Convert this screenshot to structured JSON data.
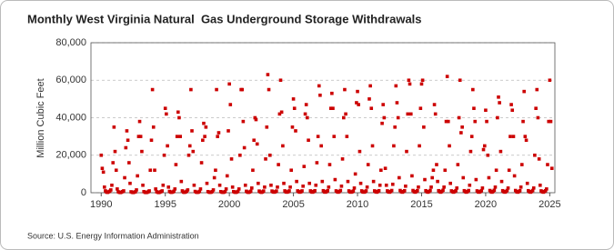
{
  "chart_data": {
    "type": "scatter",
    "title": "Monthly West Virginia Natural  Gas Underground Storage Withdrawals",
    "y_label": "Million Cubic Feet",
    "source": "Source: U.S. Energy Information Administration",
    "color": "#cc0000",
    "grid": true,
    "xlim": [
      1989.2,
      2025.4
    ],
    "xticks": [
      1990,
      1995,
      2000,
      2005,
      2010,
      2015,
      2020,
      2025
    ],
    "ylim": [
      0,
      80000
    ],
    "yticks": [
      0,
      {
        "value": 20000,
        "label": "20,000"
      },
      {
        "value": 40000,
        "label": "40,000"
      },
      {
        "value": 60000,
        "label": "60,000"
      },
      {
        "value": 80000,
        "label": "80,000"
      }
    ],
    "x": [
      1990,
      1990.08,
      1990.17,
      1990.25,
      1990.33,
      1990.42,
      1990.5,
      1990.58,
      1990.67,
      1990.75,
      1990.83,
      1990.92,
      1991,
      1991.08,
      1991.17,
      1991.25,
      1991.33,
      1991.42,
      1991.5,
      1991.58,
      1991.67,
      1991.75,
      1991.83,
      1991.92,
      1992,
      1992.08,
      1992.17,
      1992.25,
      1992.33,
      1992.42,
      1992.5,
      1992.58,
      1992.67,
      1992.75,
      1992.83,
      1992.92,
      1993,
      1993.08,
      1993.17,
      1993.25,
      1993.33,
      1993.42,
      1993.5,
      1993.58,
      1993.67,
      1993.75,
      1993.83,
      1993.92,
      1994,
      1994.08,
      1994.17,
      1994.25,
      1994.33,
      1994.42,
      1994.5,
      1994.58,
      1994.67,
      1994.75,
      1994.83,
      1994.92,
      1995,
      1995.08,
      1995.17,
      1995.25,
      1995.33,
      1995.42,
      1995.5,
      1995.58,
      1995.67,
      1995.75,
      1995.83,
      1995.92,
      1996,
      1996.08,
      1996.17,
      1996.25,
      1996.33,
      1996.42,
      1996.5,
      1996.58,
      1996.67,
      1996.75,
      1996.83,
      1996.92,
      1997,
      1997.08,
      1997.17,
      1997.25,
      1997.33,
      1997.42,
      1997.5,
      1997.58,
      1997.67,
      1997.75,
      1997.83,
      1997.92,
      1998,
      1998.08,
      1998.17,
      1998.25,
      1998.33,
      1998.42,
      1998.5,
      1998.58,
      1998.67,
      1998.75,
      1998.83,
      1998.92,
      1999,
      1999.08,
      1999.17,
      1999.25,
      1999.33,
      1999.42,
      1999.5,
      1999.58,
      1999.67,
      1999.75,
      1999.83,
      1999.92,
      2000,
      2000.08,
      2000.17,
      2000.25,
      2000.33,
      2000.42,
      2000.5,
      2000.58,
      2000.67,
      2000.75,
      2000.83,
      2000.92,
      2001,
      2001.08,
      2001.17,
      2001.25,
      2001.33,
      2001.42,
      2001.5,
      2001.58,
      2001.67,
      2001.75,
      2001.83,
      2001.92,
      2002,
      2002.08,
      2002.17,
      2002.25,
      2002.33,
      2002.42,
      2002.5,
      2002.58,
      2002.67,
      2002.75,
      2002.83,
      2002.92,
      2003,
      2003.08,
      2003.17,
      2003.25,
      2003.33,
      2003.42,
      2003.5,
      2003.58,
      2003.67,
      2003.75,
      2003.83,
      2003.92,
      2004,
      2004.08,
      2004.17,
      2004.25,
      2004.33,
      2004.42,
      2004.5,
      2004.58,
      2004.67,
      2004.75,
      2004.83,
      2004.92,
      2005,
      2005.08,
      2005.17,
      2005.25,
      2005.33,
      2005.42,
      2005.5,
      2005.58,
      2005.67,
      2005.75,
      2005.83,
      2005.92,
      2006,
      2006.08,
      2006.17,
      2006.25,
      2006.33,
      2006.42,
      2006.5,
      2006.58,
      2006.67,
      2006.75,
      2006.83,
      2006.92,
      2007,
      2007.08,
      2007.17,
      2007.25,
      2007.33,
      2007.42,
      2007.5,
      2007.58,
      2007.67,
      2007.75,
      2007.83,
      2007.92,
      2008,
      2008.08,
      2008.17,
      2008.25,
      2008.33,
      2008.42,
      2008.5,
      2008.58,
      2008.67,
      2008.75,
      2008.83,
      2008.92,
      2009,
      2009.08,
      2009.17,
      2009.25,
      2009.33,
      2009.42,
      2009.5,
      2009.58,
      2009.67,
      2009.75,
      2009.83,
      2009.92,
      2010,
      2010.08,
      2010.17,
      2010.25,
      2010.33,
      2010.42,
      2010.5,
      2010.58,
      2010.67,
      2010.75,
      2010.83,
      2010.92,
      2011,
      2011.08,
      2011.17,
      2011.25,
      2011.33,
      2011.42,
      2011.5,
      2011.58,
      2011.67,
      2011.75,
      2011.83,
      2011.92,
      2012,
      2012.08,
      2012.17,
      2012.25,
      2012.33,
      2012.42,
      2012.5,
      2012.58,
      2012.67,
      2012.75,
      2012.83,
      2012.92,
      2013,
      2013.08,
      2013.17,
      2013.25,
      2013.33,
      2013.42,
      2013.5,
      2013.58,
      2013.67,
      2013.75,
      2013.83,
      2013.92,
      2014,
      2014.08,
      2014.17,
      2014.25,
      2014.33,
      2014.42,
      2014.5,
      2014.58,
      2014.67,
      2014.75,
      2014.83,
      2014.92,
      2015,
      2015.08,
      2015.17,
      2015.25,
      2015.33,
      2015.42,
      2015.5,
      2015.58,
      2015.67,
      2015.75,
      2015.83,
      2015.92,
      2016,
      2016.08,
      2016.17,
      2016.25,
      2016.33,
      2016.42,
      2016.5,
      2016.58,
      2016.67,
      2016.75,
      2016.83,
      2016.92,
      2017,
      2017.08,
      2017.17,
      2017.25,
      2017.33,
      2017.42,
      2017.5,
      2017.58,
      2017.67,
      2017.75,
      2017.83,
      2017.92,
      2018,
      2018.08,
      2018.17,
      2018.25,
      2018.33,
      2018.42,
      2018.5,
      2018.58,
      2018.67,
      2018.75,
      2018.83,
      2018.92,
      2019,
      2019.08,
      2019.17,
      2019.25,
      2019.33,
      2019.42,
      2019.5,
      2019.58,
      2019.67,
      2019.75,
      2019.83,
      2019.92,
      2020,
      2020.08,
      2020.17,
      2020.25,
      2020.33,
      2020.42,
      2020.5,
      2020.58,
      2020.67,
      2020.75,
      2020.83,
      2020.92,
      2021,
      2021.08,
      2021.17,
      2021.25,
      2021.33,
      2021.42,
      2021.5,
      2021.58,
      2021.67,
      2021.75,
      2021.83,
      2021.92,
      2022,
      2022.08,
      2022.17,
      2022.25,
      2022.33,
      2022.42,
      2022.5,
      2022.58,
      2022.67,
      2022.75,
      2022.83,
      2022.92,
      2023,
      2023.08,
      2023.17,
      2023.25,
      2023.33,
      2023.42,
      2023.5,
      2023.58,
      2023.67,
      2023.75,
      2023.83,
      2023.92,
      2024,
      2024.08,
      2024.17,
      2024.25,
      2024.33,
      2024.42,
      2024.5,
      2024.58,
      2024.67,
      2024.75,
      2024.83,
      2024.92,
      2025,
      2025.08,
      2025.17
    ],
    "values": [
      20000,
      13000,
      11000,
      3000,
      1000,
      300,
      200,
      500,
      800,
      1500,
      4000,
      16000,
      35000,
      22000,
      12000,
      2000,
      500,
      200,
      100,
      300,
      600,
      1000,
      8000,
      24000,
      33000,
      28000,
      16000,
      5000,
      500,
      200,
      100,
      300,
      500,
      1500,
      9000,
      30000,
      38000,
      30000,
      22000,
      4000,
      600,
      200,
      100,
      200,
      500,
      1000,
      12000,
      28000,
      55000,
      35000,
      12000,
      2000,
      500,
      200,
      100,
      300,
      600,
      1000,
      4000,
      20000,
      45000,
      42000,
      25000,
      3000,
      700,
      300,
      200,
      400,
      800,
      2000,
      15000,
      30000,
      43000,
      40000,
      30000,
      6000,
      1000,
      300,
      200,
      400,
      800,
      1500,
      20000,
      25000,
      55000,
      33000,
      22000,
      4000,
      700,
      300,
      200,
      300,
      700,
      2000,
      16000,
      28000,
      37000,
      30000,
      35000,
      5000,
      600,
      300,
      200,
      300,
      600,
      1500,
      8000,
      12000,
      55000,
      30000,
      32000,
      4000,
      600,
      300,
      200,
      300,
      600,
      2000,
      9000,
      33000,
      58000,
      47000,
      18000,
      3000,
      600,
      300,
      200,
      400,
      700,
      2000,
      20000,
      55000,
      55000,
      38000,
      24000,
      4000,
      800,
      300,
      200,
      400,
      800,
      2500,
      12000,
      28000,
      40000,
      39000,
      26000,
      5000,
      900,
      400,
      200,
      400,
      900,
      3000,
      18000,
      35000,
      63000,
      55000,
      20000,
      4000,
      900,
      400,
      300,
      500,
      900,
      3000,
      15000,
      42000,
      60000,
      43000,
      25000,
      5000,
      1000,
      400,
      300,
      500,
      1000,
      3000,
      12000,
      35000,
      50000,
      45000,
      33000,
      6000,
      1000,
      500,
      300,
      500,
      1000,
      3500,
      14000,
      42000,
      47000,
      40000,
      28000,
      5000,
      1000,
      400,
      300,
      600,
      1100,
      4000,
      16000,
      30000,
      57000,
      52000,
      25000,
      6000,
      1100,
      400,
      300,
      600,
      1100,
      3000,
      15000,
      45000,
      53000,
      45000,
      30000,
      7000,
      1000,
      500,
      300,
      600,
      1200,
      3500,
      18000,
      40000,
      55000,
      42000,
      30000,
      6000,
      1000,
      400,
      300,
      500,
      900,
      2500,
      10000,
      48000,
      54000,
      47000,
      22000,
      5000,
      1000,
      400,
      300,
      500,
      1000,
      3000,
      15000,
      50000,
      57000,
      45000,
      25000,
      6000,
      1000,
      500,
      300,
      600,
      1100,
      4000,
      12000,
      37000,
      47000,
      40000,
      13000,
      4000,
      1000,
      400,
      300,
      600,
      1200,
      4500,
      25000,
      35000,
      57000,
      48000,
      40000,
      8000,
      1200,
      500,
      300,
      600,
      1100,
      3500,
      22000,
      42000,
      60000,
      58000,
      42000,
      9000,
      1200,
      500,
      300,
      600,
      1100,
      3000,
      25000,
      45000,
      58000,
      60000,
      35000,
      7000,
      1100,
      500,
      300,
      600,
      1200,
      3000,
      8000,
      12000,
      47000,
      42000,
      15000,
      6000,
      1100,
      500,
      300,
      700,
      1300,
      3000,
      12000,
      38000,
      62000,
      38000,
      25000,
      5000,
      1000,
      500,
      300,
      600,
      1100,
      2500,
      15000,
      40000,
      60000,
      32000,
      35000,
      8000,
      1100,
      500,
      300,
      600,
      1200,
      4000,
      22000,
      30000,
      55000,
      45000,
      38000,
      7000,
      1000,
      400,
      300,
      600,
      1100,
      2500,
      23000,
      25000,
      44000,
      38000,
      20000,
      8000,
      1200,
      500,
      300,
      700,
      1300,
      3000,
      12000,
      40000,
      51000,
      48000,
      22000,
      6000,
      1100,
      500,
      300,
      600,
      1200,
      2500,
      12000,
      30000,
      47000,
      44000,
      30000,
      9000,
      1200,
      500,
      300,
      600,
      1100,
      3000,
      15000,
      38000,
      54000,
      30000,
      28000,
      5000,
      1100,
      500,
      300,
      600,
      1200,
      2500,
      20000,
      45000,
      55000,
      40000,
      18000,
      4000,
      1000,
      500,
      300,
      600,
      1100,
      2000,
      15000,
      38000,
      60000,
      38000,
      13000
    ]
  }
}
